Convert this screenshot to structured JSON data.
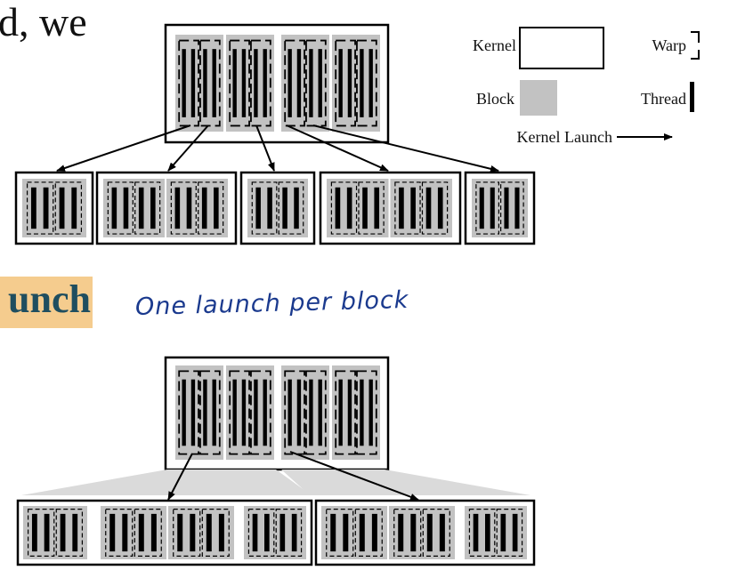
{
  "text_fragments": {
    "top": "d, we",
    "highlight": "unch",
    "handwritten_note": "One launch per block"
  },
  "legend": {
    "kernel": "Kernel",
    "block": "Block",
    "warp": "Warp",
    "thread": "Thread",
    "launch": "Kernel Launch"
  },
  "colors": {
    "block_fill": "#c2c2c2",
    "highlight": "#f5cc8e",
    "note_ink": "#1b3a8e",
    "heading_text": "#1f4e5f"
  },
  "diagram": {
    "top_child_kernels_blocks": [
      1,
      2,
      1,
      2,
      1
    ],
    "bottom_merged_kernels_blocks": [
      [
        1,
        2,
        1
      ],
      [
        2,
        1
      ]
    ]
  }
}
